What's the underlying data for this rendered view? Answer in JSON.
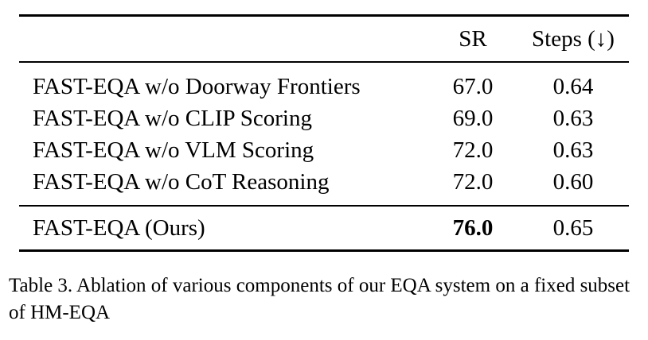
{
  "table": {
    "headers": {
      "method": "",
      "sr": "SR",
      "steps": "Steps (↓)"
    },
    "rows": [
      {
        "method": "FAST-EQA w/o Doorway Frontiers",
        "sr": "67.0",
        "steps": "0.64"
      },
      {
        "method": "FAST-EQA w/o CLIP Scoring",
        "sr": "69.0",
        "steps": "0.63"
      },
      {
        "method": "FAST-EQA w/o VLM Scoring",
        "sr": "72.0",
        "steps": "0.63"
      },
      {
        "method": "FAST-EQA w/o CoT Reasoning",
        "sr": "72.0",
        "steps": "0.60"
      }
    ],
    "final_row": {
      "method": "FAST-EQA (Ours)",
      "sr": "76.0",
      "steps": "0.65",
      "sr_bold": true
    }
  },
  "caption": "Table 3. Ablation of various components of our EQA system on a fixed subset of HM-EQA"
}
